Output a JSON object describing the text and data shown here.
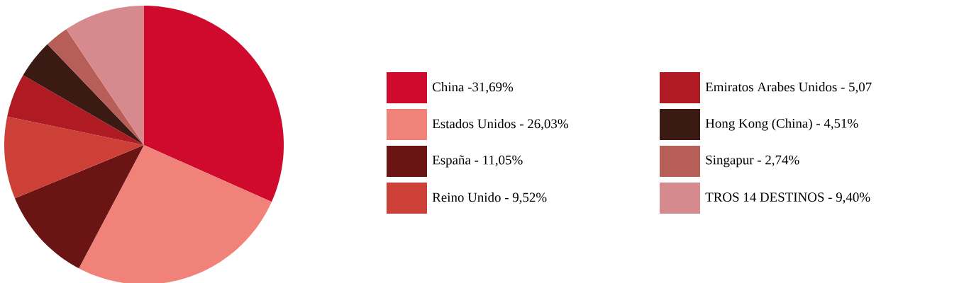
{
  "chart_data": {
    "type": "pie",
    "categories": [
      "China -31,69%",
      "Estados Unidos - 26,03%",
      "España - 11,05%",
      "Reino Unido - 9,52%",
      "Emiratos Arabes Unidos - 5,07",
      "Hong Kong (China) - 4,51%",
      "Singapur - 2,74%",
      "TROS 14 DESTINOS - 9,40%"
    ],
    "values": [
      31.69,
      26.03,
      11.05,
      9.52,
      5.07,
      4.51,
      2.74,
      9.4
    ],
    "colors": [
      "#cf0a2c",
      "#f0827a",
      "#6b1414",
      "#cc4038",
      "#b01a22",
      "#3b1a14",
      "#b85e58",
      "#d78a8e"
    ],
    "legend": "right"
  }
}
